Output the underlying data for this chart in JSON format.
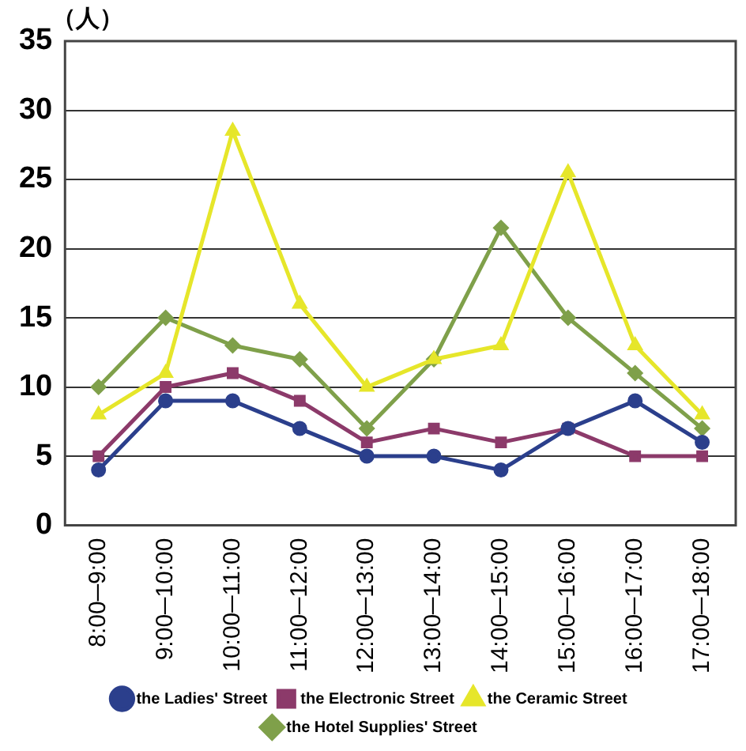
{
  "chart_data": {
    "type": "line",
    "ylabel": "（人）",
    "categories": [
      "8:00─9:00",
      "9:00─10:00",
      "10:00─11:00",
      "11:00─12:00",
      "12:00─13:00",
      "13:00─14:00",
      "14:00─15:00",
      "15:00─16:00",
      "16:00─17:00",
      "17:00─18:00"
    ],
    "series": [
      {
        "name": "the Ladies' Street",
        "color": "#2b3f8c",
        "marker": "circle",
        "values": [
          4,
          9,
          9,
          7,
          5,
          5,
          4,
          7,
          9,
          6
        ]
      },
      {
        "name": "the Electronic Street",
        "color": "#8c3a6a",
        "marker": "square",
        "values": [
          5,
          10,
          11,
          9,
          6,
          7,
          6,
          7,
          5,
          5
        ]
      },
      {
        "name": "the Ceramic Street",
        "color": "#e6e62a",
        "marker": "triangle",
        "values": [
          8,
          11,
          28.5,
          16,
          10,
          12,
          13,
          25.5,
          13,
          8
        ]
      },
      {
        "name": "the Hotel Supplies' Street",
        "color": "#7fa04a",
        "marker": "diamond",
        "values": [
          10,
          15,
          13,
          12,
          7,
          12,
          21.5,
          15,
          11,
          7
        ]
      }
    ],
    "ylim": [
      0,
      35
    ],
    "yticks": [
      0,
      5,
      10,
      15,
      20,
      25,
      30,
      35
    ],
    "grid": "y",
    "legend": "bottom"
  }
}
